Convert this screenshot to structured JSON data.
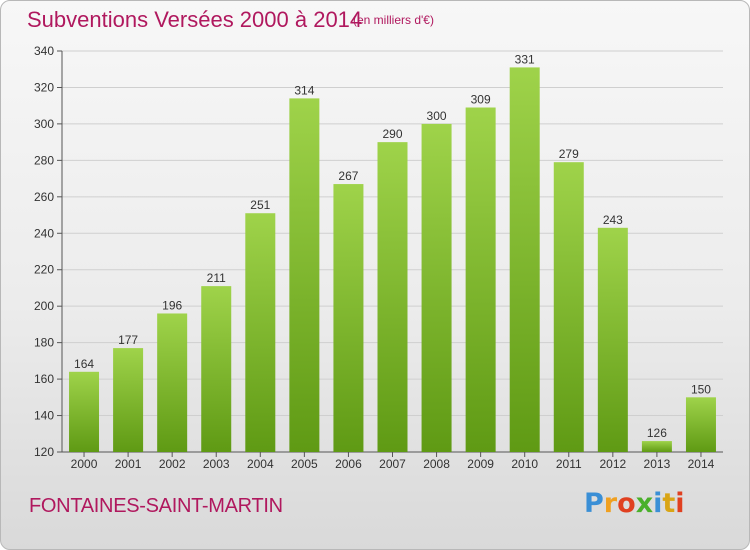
{
  "title": "Subventions Versées 2000 à 2014",
  "unit": "(en milliers d'€)",
  "commune": "FONTAINES-SAINT-MARTIN",
  "logo": {
    "letters": [
      "P",
      "r",
      "o",
      "x",
      "i",
      "t",
      "i"
    ],
    "colors": [
      "#3a8fd6",
      "#f0a020",
      "#e04020",
      "#4ab02a",
      "#3a8fd6",
      "#d9a515",
      "#e04020"
    ]
  },
  "colors": {
    "title": "#b0185e",
    "bar_light": "#9fd34a",
    "bar_dark": "#5f9a14",
    "grid": "#cfcfcf"
  },
  "chart_data": {
    "type": "bar",
    "title": "Subventions Versées 2000 à 2014",
    "subtitle": "(en milliers d'€)",
    "categories": [
      "2000",
      "2001",
      "2002",
      "2003",
      "2004",
      "2005",
      "2006",
      "2007",
      "2008",
      "2009",
      "2010",
      "2011",
      "2012",
      "2013",
      "2014"
    ],
    "values": [
      164,
      177,
      196,
      211,
      251,
      314,
      267,
      290,
      300,
      309,
      331,
      279,
      243,
      126,
      150
    ],
    "ylim": [
      120,
      340
    ],
    "yticks": [
      120,
      140,
      160,
      180,
      200,
      220,
      240,
      260,
      280,
      300,
      320,
      340
    ],
    "grid": true,
    "show_value_labels": true
  }
}
